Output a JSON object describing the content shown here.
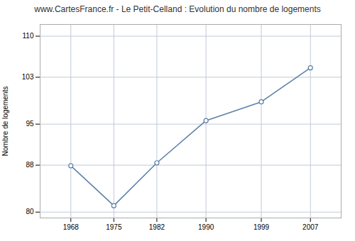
{
  "chart_data": {
    "type": "line",
    "title": "www.CartesFrance.fr - Le Petit-Celland : Evolution du nombre de logements",
    "ylabel": "Nombre de logements",
    "x": [
      1968,
      1975,
      1982,
      1990,
      1999,
      2007
    ],
    "values": [
      87.9,
      81.1,
      88.4,
      95.6,
      98.8,
      104.6
    ],
    "color": "#5b7fa6",
    "marker": "circle",
    "xlim": [
      1963,
      2012
    ],
    "ylim": [
      79,
      112
    ],
    "xticks": [
      1968,
      1975,
      1982,
      1990,
      1999,
      2007
    ],
    "yticks": [
      80,
      88,
      95,
      103,
      110
    ],
    "grid": true
  }
}
